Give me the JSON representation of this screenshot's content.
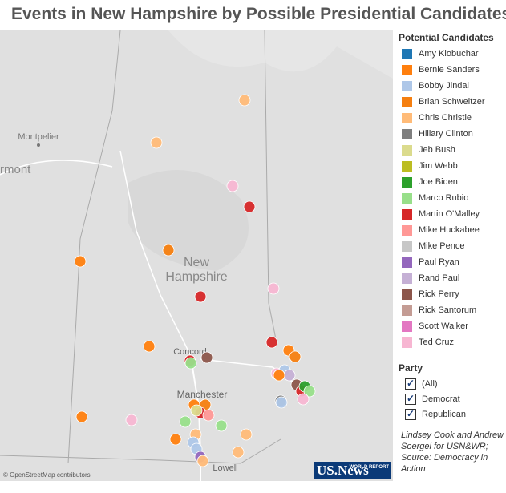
{
  "header": {
    "title": "Events in New Hampshire by Possible Presidential Candidates"
  },
  "map": {
    "labels": {
      "montpelier": "Montpelier",
      "vermont": "rmont",
      "state_line1": "New",
      "state_line2": "Hampshire",
      "concord": "Concord",
      "manchester": "Manchester",
      "lowell": "Lowell",
      "attribution": "© OpenStreetMap contributors"
    }
  },
  "legend": {
    "title": "Potential Candidates",
    "items": [
      {
        "name": "Amy Klobuchar",
        "color": "#1f77b4"
      },
      {
        "name": "Bernie Sanders",
        "color": "#ff7f0e"
      },
      {
        "name": "Bobby Jindal",
        "color": "#aec7e8"
      },
      {
        "name": "Brian Schweitzer",
        "color": "#f57f10"
      },
      {
        "name": "Chris Christie",
        "color": "#ffbb78"
      },
      {
        "name": "Hillary Clinton",
        "color": "#7f7f7f"
      },
      {
        "name": "Jeb Bush",
        "color": "#dbdb8d"
      },
      {
        "name": "Jim Webb",
        "color": "#bcbd22"
      },
      {
        "name": "Joe Biden",
        "color": "#2ca02c"
      },
      {
        "name": "Marco Rubio",
        "color": "#98df8a"
      },
      {
        "name": "Martin O'Malley",
        "color": "#d62728"
      },
      {
        "name": "Mike Huckabee",
        "color": "#ff9896"
      },
      {
        "name": "Mike Pence",
        "color": "#c7c7c7"
      },
      {
        "name": "Paul Ryan",
        "color": "#9467bd"
      },
      {
        "name": "Rand Paul",
        "color": "#c5b0d5"
      },
      {
        "name": "Rick Perry",
        "color": "#8c564b"
      },
      {
        "name": "Rick Santorum",
        "color": "#c49c94"
      },
      {
        "name": "Scott Walker",
        "color": "#e377c2"
      },
      {
        "name": "Ted Cruz",
        "color": "#f7b6d2"
      }
    ]
  },
  "filter": {
    "title": "Party",
    "options": [
      "(All)",
      "Democrat",
      "Republican"
    ]
  },
  "credit": {
    "text": "Lindsey Cook and Andrew Soergel for USN&WR; Source: Democracy in Action",
    "logo": "US.News",
    "logo_small": "WORLD REPORT"
  }
}
